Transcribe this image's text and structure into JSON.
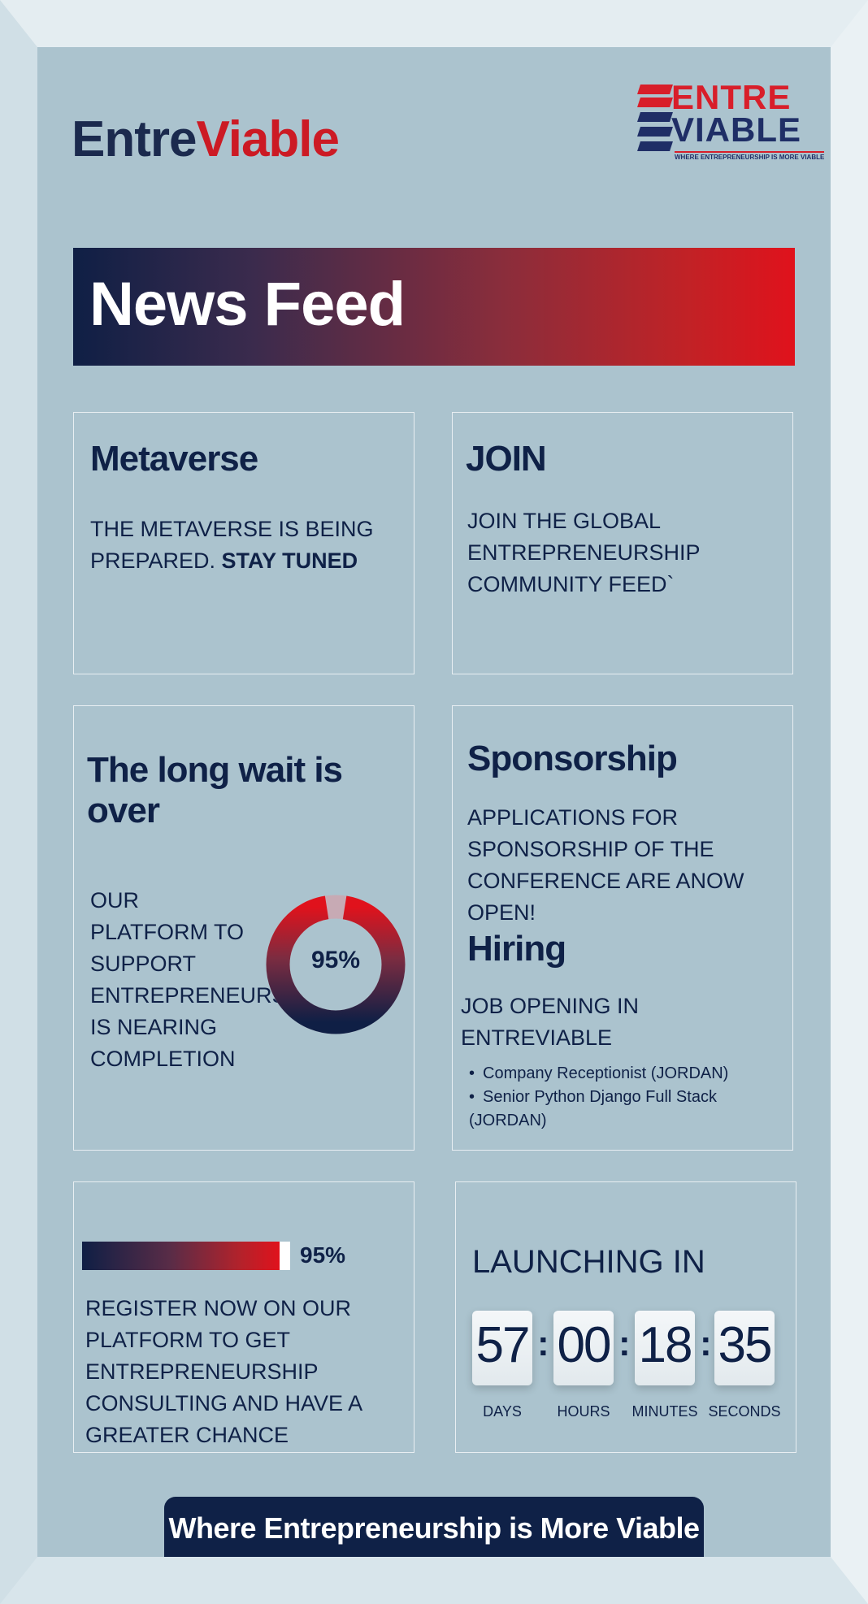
{
  "brand": {
    "part1": "Entre",
    "part2": "Viable"
  },
  "logo": {
    "line1": "ENTRE",
    "line2": "VIABLE",
    "tagline": "WHERE ENTREPRENEURSHIP IS MORE VIABLE"
  },
  "banner": {
    "title": "News Feed"
  },
  "cards": {
    "metaverse": {
      "title": "Metaverse",
      "body": "THE METAVERSE IS BEING PREPARED. ",
      "body_bold": "STAY TUNED"
    },
    "join": {
      "title": "JOIN",
      "body": "JOIN THE GLOBAL ENTREPRENEURSHIP COMMUNITY FEED`"
    },
    "wait": {
      "title": "The long wait is over",
      "body": "OUR PLATFORM TO SUPPORT ENTREPRENEURS IS NEARING COMPLETION",
      "percent_label": "95%",
      "percent": 95
    },
    "sponsorship": {
      "title": "Sponsorship",
      "body": "APPLICATIONS FOR SPONSORSHIP OF THE CONFERENCE ARE ANOW OPEN!"
    },
    "hiring": {
      "title": "Hiring",
      "subtitle": "JOB OPENING IN ENTREVIABLE",
      "jobs": [
        "Company Receptionist (JORDAN)",
        "Senior Python Django Full Stack (JORDAN)"
      ]
    },
    "register": {
      "percent_label": "95%",
      "percent": 95,
      "body": "REGISTER NOW ON OUR PLATFORM TO GET ENTREPRENEURSHIP CONSULTING AND HAVE A GREATER CHANCE"
    },
    "launch": {
      "title": "LAUNCHING IN",
      "days": "57",
      "hours": "00",
      "minutes": "18",
      "seconds": "35",
      "days_label": "DAYS",
      "hours_label": "HOURS",
      "minutes_label": "MINUTES",
      "seconds_label": "SECONDS",
      "separator": ":"
    }
  },
  "footer": {
    "text": "Where Entrepreneurship is More Viable"
  },
  "colors": {
    "navy": "#0f2147",
    "red": "#e0121c",
    "background": "#abc3ce"
  }
}
